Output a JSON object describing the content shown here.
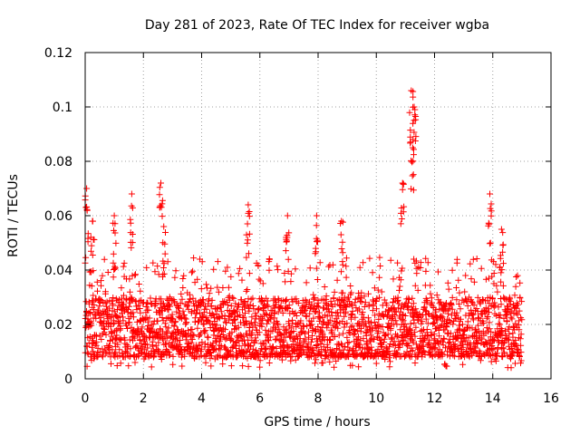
{
  "chart_data": {
    "type": "scatter",
    "title": "Day 281 of 2023, Rate Of TEC Index for receiver wgba",
    "xlabel": "GPS time / hours",
    "ylabel": "ROTI / TECUs",
    "xlim": [
      0,
      16
    ],
    "ylim": [
      0,
      0.12
    ],
    "x_ticks": [
      0,
      2,
      4,
      6,
      8,
      10,
      12,
      14,
      16
    ],
    "x_tick_labels": [
      "0",
      "2",
      "4",
      "6",
      "8",
      "10",
      "12",
      "14",
      "16"
    ],
    "y_ticks": [
      0,
      0.02,
      0.04,
      0.06,
      0.08,
      0.1,
      0.12
    ],
    "y_tick_labels": [
      "0",
      "0.02",
      "0.04",
      "0.06",
      "0.08",
      "0.1",
      "0.12"
    ],
    "grid": true,
    "marker": "+",
    "color": "#ff0000",
    "data_range_x": [
      0,
      15
    ],
    "baseline_band": [
      0.008,
      0.03
    ],
    "peaks": [
      {
        "x": 0.05,
        "y": 0.07
      },
      {
        "x": 0.25,
        "y": 0.058
      },
      {
        "x": 1.0,
        "y": 0.06
      },
      {
        "x": 1.6,
        "y": 0.068
      },
      {
        "x": 2.6,
        "y": 0.072
      },
      {
        "x": 2.7,
        "y": 0.056
      },
      {
        "x": 5.6,
        "y": 0.064
      },
      {
        "x": 6.95,
        "y": 0.06
      },
      {
        "x": 7.95,
        "y": 0.06
      },
      {
        "x": 8.8,
        "y": 0.058
      },
      {
        "x": 10.9,
        "y": 0.072
      },
      {
        "x": 11.2,
        "y": 0.106
      },
      {
        "x": 11.3,
        "y": 0.1
      },
      {
        "x": 11.25,
        "y": 0.085
      },
      {
        "x": 13.9,
        "y": 0.068
      },
      {
        "x": 14.3,
        "y": 0.055
      }
    ]
  }
}
